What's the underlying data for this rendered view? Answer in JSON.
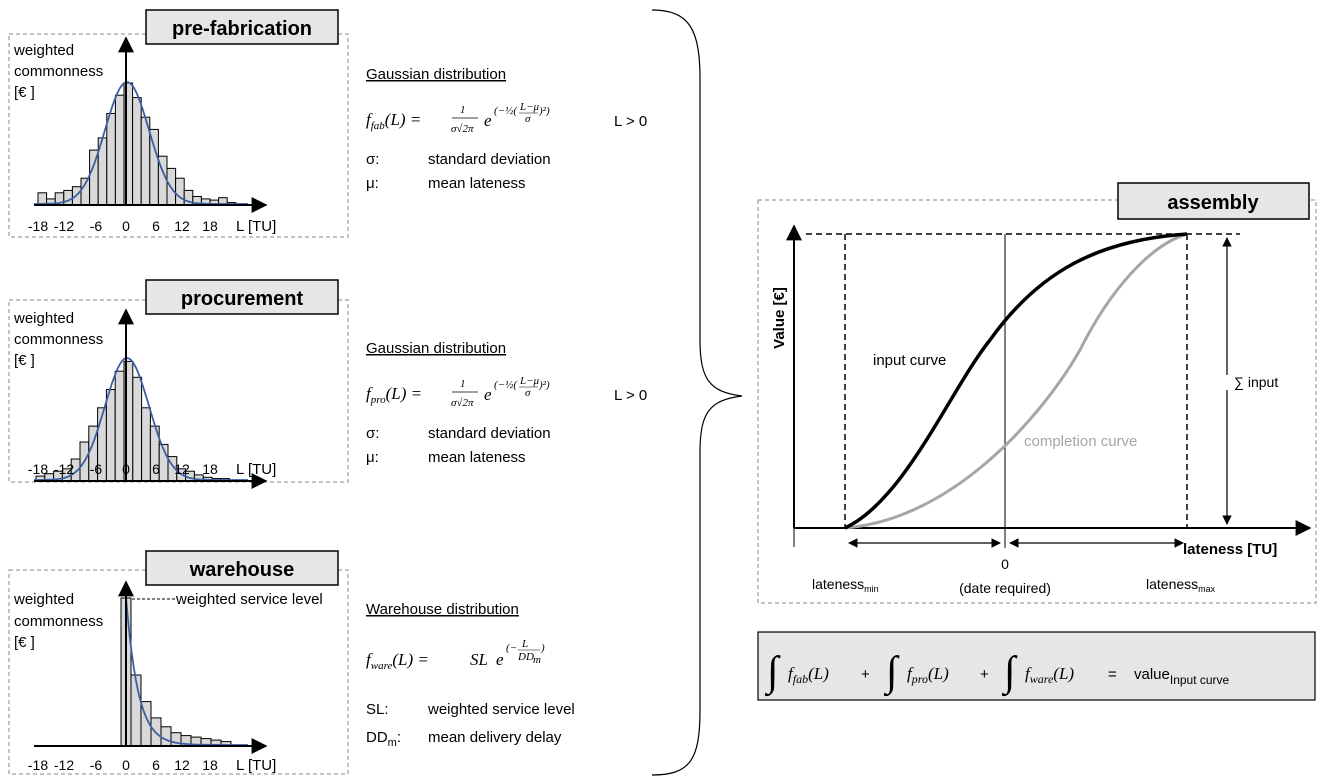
{
  "panels": {
    "prefab": {
      "title": "pre-fabrication",
      "ylabel": [
        "weighted",
        "commonness",
        "[€ ]"
      ],
      "xticks": [
        "-18",
        "-12",
        "-6",
        "0",
        "6",
        "12",
        "18"
      ],
      "xlabel": "L [TU]",
      "bars": [
        0.1,
        0.05,
        0.1,
        0.12,
        0.15,
        0.22,
        0.45,
        0.55,
        0.75,
        0.9,
        1.0,
        0.88,
        0.72,
        0.62,
        0.4,
        0.3,
        0.22,
        0.12,
        0.07,
        0.05,
        0.04,
        0.06,
        0.02
      ]
    },
    "procurement": {
      "title": "procurement",
      "ylabel": [
        "weighted",
        "commonness",
        "[€ ]"
      ],
      "xticks": [
        "-18",
        "-12",
        "-6",
        "0",
        "6",
        "12",
        "18"
      ],
      "xlabel": "L [TU]",
      "bars": [
        0.04,
        0.06,
        0.08,
        0.1,
        0.18,
        0.32,
        0.45,
        0.6,
        0.75,
        0.9,
        0.98,
        0.85,
        0.6,
        0.45,
        0.3,
        0.2,
        0.1,
        0.08,
        0.05,
        0.03,
        0.02,
        0.02
      ]
    },
    "warehouse": {
      "title": "warehouse",
      "ylabel": [
        "weighted",
        "commonness",
        "[€ ]"
      ],
      "annotation": "weighted service level",
      "xticks": [
        "-18",
        "-12",
        "-6",
        "0",
        "6",
        "12",
        "18"
      ],
      "xlabel": "L [TU]",
      "bars": [
        1.0,
        0.48,
        0.3,
        0.19,
        0.13,
        0.09,
        0.07,
        0.06,
        0.05,
        0.04,
        0.03
      ]
    }
  },
  "formulas": {
    "fab": {
      "heading": "Gaussian distribution",
      "lhs": "f",
      "sub": "fab",
      "cond": "L > 0",
      "defs": [
        {
          "sym": "σ:",
          "text": "standard deviation"
        },
        {
          "sym": "μ:",
          "text": "mean lateness"
        }
      ]
    },
    "pro": {
      "heading": "Gaussian distribution",
      "lhs": "f",
      "sub": "pro",
      "cond": "L > 0",
      "defs": [
        {
          "sym": "σ:",
          "text": "standard deviation"
        },
        {
          "sym": "μ:",
          "text": "mean lateness"
        }
      ]
    },
    "ware": {
      "heading": "Warehouse distribution",
      "lhs": "f",
      "sub": "ware",
      "sl": "SL",
      "defs": [
        {
          "sym": "SL:",
          "text": "weighted service level"
        },
        {
          "sym": "DD",
          "symsub": "m",
          "symtail": ":",
          "text": "mean delivery delay"
        }
      ]
    }
  },
  "assembly": {
    "title": "assembly",
    "ylabel": "Value  [€]",
    "xlabel": "lateness [TU]",
    "input_curve": "input curve",
    "completion_curve": "completion curve",
    "sum_input": "∑ input",
    "zero": "0",
    "date_required": "(date required)",
    "lateness": "lateness",
    "min_sub": "min",
    "max_sub": "max"
  },
  "sum_formula": {
    "terms": [
      {
        "f": "f",
        "sub": "fab"
      },
      {
        "f": "f",
        "sub": "pro"
      },
      {
        "f": "f",
        "sub": "ware"
      }
    ],
    "result": "value",
    "result_sub": "Input curve"
  },
  "colors": {
    "bar_fill": "#d9d9d9",
    "gauss_line": "#3b5fa0",
    "completion_curve": "#a6a6a6",
    "title_box": "#e6e6e6"
  }
}
